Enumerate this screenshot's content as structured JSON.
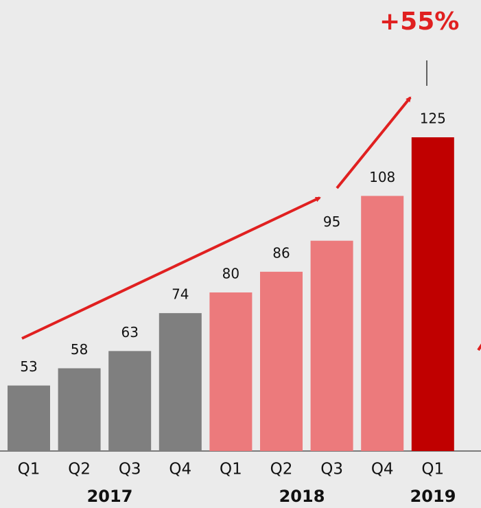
{
  "chart_data": {
    "type": "bar",
    "categories": [
      "Q1",
      "Q2",
      "Q3",
      "Q4",
      "Q1",
      "Q2",
      "Q3",
      "Q4",
      "Q1"
    ],
    "values": [
      53,
      58,
      63,
      74,
      80,
      86,
      95,
      108,
      125
    ],
    "colors": [
      "#7f7f7f",
      "#7f7f7f",
      "#7f7f7f",
      "#7f7f7f",
      "#ec7a7c",
      "#ec7a7c",
      "#ec7a7c",
      "#ec7a7c",
      "#c00000"
    ],
    "year_labels": [
      "2017",
      "2018",
      "2019"
    ],
    "annotation": "+55%",
    "annotation_color": "#e02020",
    "ylim": [
      34,
      125
    ]
  }
}
